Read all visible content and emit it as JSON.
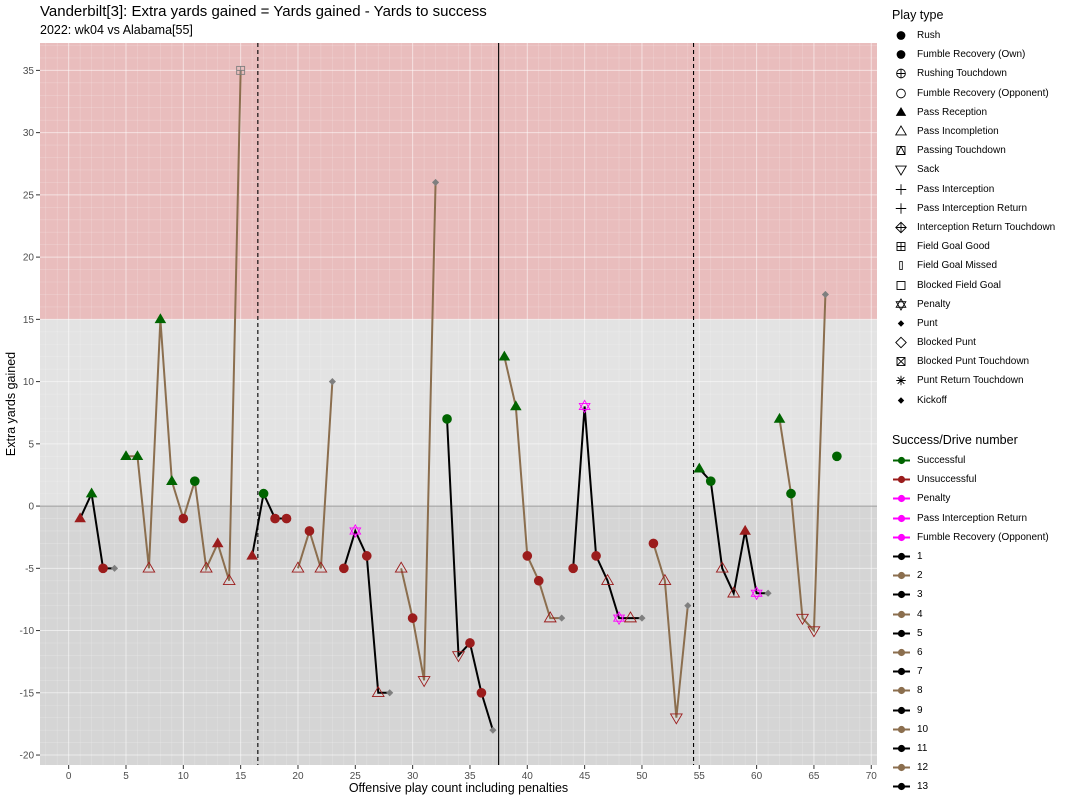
{
  "chart_data": {
    "type": "line",
    "title": "Vanderbilt[3]: Extra yards gained = Yards gained - Yards to success",
    "subtitle": "2022: wk04 vs Alabama[55]",
    "xlabel": "Offensive play count including penalties",
    "ylabel": "Extra yards gained",
    "xlim": [
      -2.5,
      70.5
    ],
    "ylim": [
      -20.8,
      37.2
    ],
    "x_ticks": [
      0,
      5,
      10,
      15,
      20,
      25,
      30,
      35,
      40,
      45,
      50,
      55,
      60,
      65,
      70
    ],
    "y_ticks": [
      -20,
      -15,
      -10,
      -5,
      0,
      5,
      10,
      15,
      20,
      25,
      30,
      35
    ],
    "grid": true,
    "shaded_region": {
      "y_from": 15,
      "y_to": 37.2,
      "color": "#e9bdbd"
    },
    "negative_region": {
      "y_from": -20.8,
      "y_to": 0,
      "color": "#d5d5d5"
    },
    "background": "#e3e3e3",
    "vlines": [
      {
        "x": 16.5,
        "style": "dashed"
      },
      {
        "x": 37.5,
        "style": "solid"
      },
      {
        "x": 54.5,
        "style": "dashed"
      }
    ],
    "colors": {
      "Successful": "#006400",
      "Unsuccessful": "#9b1c1c",
      "Penalty": "#ff00ff",
      "Drive_odd": "#000000",
      "Drive_even": "#8b6e4e",
      "end_marker": "#7f7f7f"
    },
    "drives": [
      {
        "drive": 1,
        "points": [
          {
            "x": 1,
            "y": -1,
            "type": "Pass Reception",
            "result": "Unsuccessful"
          },
          {
            "x": 2,
            "y": 1,
            "type": "Pass Reception",
            "result": "Successful"
          },
          {
            "x": 3,
            "y": -5,
            "type": "Rush",
            "result": "Unsuccessful"
          },
          {
            "x": 4,
            "y": -5,
            "type": "Punt",
            "result": "end"
          }
        ]
      },
      {
        "drive": 2,
        "points": [
          {
            "x": 5,
            "y": 4,
            "type": "Pass Reception",
            "result": "Successful"
          },
          {
            "x": 6,
            "y": 4,
            "type": "Pass Reception",
            "result": "Successful"
          },
          {
            "x": 7,
            "y": -5,
            "type": "Pass Incompletion",
            "result": "Unsuccessful"
          },
          {
            "x": 8,
            "y": 15,
            "type": "Pass Reception",
            "result": "Successful"
          },
          {
            "x": 9,
            "y": 2,
            "type": "Pass Reception",
            "result": "Successful"
          },
          {
            "x": 10,
            "y": -1,
            "type": "Rush",
            "result": "Unsuccessful"
          },
          {
            "x": 11,
            "y": 2,
            "type": "Rush",
            "result": "Successful"
          },
          {
            "x": 12,
            "y": -5,
            "type": "Pass Incompletion",
            "result": "Unsuccessful"
          },
          {
            "x": 13,
            "y": -3,
            "type": "Pass Reception",
            "result": "Unsuccessful"
          },
          {
            "x": 14,
            "y": -6,
            "type": "Pass Incompletion",
            "result": "Unsuccessful"
          },
          {
            "x": 15,
            "y": 35,
            "type": "Field Goal Good",
            "result": "end"
          }
        ]
      },
      {
        "drive": 3,
        "points": [
          {
            "x": 16,
            "y": -4,
            "type": "Pass Reception",
            "result": "Unsuccessful"
          },
          {
            "x": 17,
            "y": 1,
            "type": "Rush",
            "result": "Successful"
          },
          {
            "x": 18,
            "y": -1,
            "type": "Rush",
            "result": "Unsuccessful"
          },
          {
            "x": 19,
            "y": -1,
            "type": "Rush",
            "result": "Unsuccessful"
          }
        ]
      },
      {
        "drive": 4,
        "points": [
          {
            "x": 20,
            "y": -5,
            "type": "Pass Incompletion",
            "result": "Unsuccessful"
          },
          {
            "x": 21,
            "y": -2,
            "type": "Rush",
            "result": "Unsuccessful"
          },
          {
            "x": 22,
            "y": -5,
            "type": "Pass Incompletion",
            "result": "Unsuccessful"
          },
          {
            "x": 23,
            "y": 10,
            "type": "Punt",
            "result": "end"
          }
        ]
      },
      {
        "drive": 5,
        "points": [
          {
            "x": 24,
            "y": -5,
            "type": "Rush",
            "result": "Unsuccessful"
          },
          {
            "x": 25,
            "y": -2,
            "type": "Penalty",
            "result": "Penalty"
          },
          {
            "x": 26,
            "y": -4,
            "type": "Rush",
            "result": "Unsuccessful"
          },
          {
            "x": 27,
            "y": -15,
            "type": "Pass Incompletion",
            "result": "Unsuccessful"
          },
          {
            "x": 28,
            "y": -15,
            "type": "Punt",
            "result": "end"
          }
        ]
      },
      {
        "drive": 6,
        "points": [
          {
            "x": 29,
            "y": -5,
            "type": "Pass Incompletion",
            "result": "Unsuccessful"
          },
          {
            "x": 30,
            "y": -9,
            "type": "Rush",
            "result": "Unsuccessful"
          },
          {
            "x": 31,
            "y": -14,
            "type": "Sack",
            "result": "Unsuccessful"
          },
          {
            "x": 32,
            "y": 26,
            "type": "Punt",
            "result": "end"
          }
        ]
      },
      {
        "drive": 7,
        "points": [
          {
            "x": 33,
            "y": 7,
            "type": "Rush",
            "result": "Successful"
          },
          {
            "x": 34,
            "y": -12,
            "type": "Sack",
            "result": "Unsuccessful"
          },
          {
            "x": 35,
            "y": -11,
            "type": "Rush",
            "result": "Unsuccessful"
          },
          {
            "x": 36,
            "y": -15,
            "type": "Rush",
            "result": "Unsuccessful"
          },
          {
            "x": 37,
            "y": -18,
            "type": "Punt",
            "result": "end"
          }
        ]
      },
      {
        "drive": 8,
        "points": [
          {
            "x": 38,
            "y": 12,
            "type": "Pass Reception",
            "result": "Successful"
          },
          {
            "x": 39,
            "y": 8,
            "type": "Pass Reception",
            "result": "Successful"
          },
          {
            "x": 40,
            "y": -4,
            "type": "Rush",
            "result": "Unsuccessful"
          },
          {
            "x": 41,
            "y": -6,
            "type": "Rush",
            "result": "Unsuccessful"
          },
          {
            "x": 42,
            "y": -9,
            "type": "Pass Incompletion",
            "result": "Unsuccessful"
          },
          {
            "x": 43,
            "y": -9,
            "type": "Punt",
            "result": "end"
          }
        ]
      },
      {
        "drive": 9,
        "points": [
          {
            "x": 44,
            "y": -5,
            "type": "Rush",
            "result": "Unsuccessful"
          },
          {
            "x": 45,
            "y": 8,
            "type": "Penalty",
            "result": "Penalty"
          },
          {
            "x": 46,
            "y": -4,
            "type": "Rush",
            "result": "Unsuccessful"
          },
          {
            "x": 47,
            "y": -6,
            "type": "Pass Incompletion",
            "result": "Unsuccessful"
          },
          {
            "x": 48,
            "y": -9,
            "type": "Penalty",
            "result": "Penalty"
          },
          {
            "x": 49,
            "y": -9,
            "type": "Pass Incompletion",
            "result": "Unsuccessful"
          },
          {
            "x": 50,
            "y": -9,
            "type": "Punt",
            "result": "end"
          }
        ]
      },
      {
        "drive": 10,
        "points": [
          {
            "x": 51,
            "y": -3,
            "type": "Rush",
            "result": "Unsuccessful"
          },
          {
            "x": 52,
            "y": -6,
            "type": "Pass Incompletion",
            "result": "Unsuccessful"
          },
          {
            "x": 53,
            "y": -17,
            "type": "Sack",
            "result": "Unsuccessful"
          },
          {
            "x": 54,
            "y": -8,
            "type": "Punt",
            "result": "end"
          }
        ]
      },
      {
        "drive": 11,
        "points": [
          {
            "x": 55,
            "y": 3,
            "type": "Pass Reception",
            "result": "Successful"
          },
          {
            "x": 56,
            "y": 2,
            "type": "Rush",
            "result": "Successful"
          },
          {
            "x": 57,
            "y": -5,
            "type": "Pass Incompletion",
            "result": "Unsuccessful"
          },
          {
            "x": 58,
            "y": -7,
            "type": "Pass Incompletion",
            "result": "Unsuccessful"
          },
          {
            "x": 59,
            "y": -2,
            "type": "Pass Reception",
            "result": "Unsuccessful"
          },
          {
            "x": 60,
            "y": -7,
            "type": "Penalty",
            "result": "Penalty"
          },
          {
            "x": 61,
            "y": -7,
            "type": "Punt",
            "result": "end"
          }
        ]
      },
      {
        "drive": 12,
        "points": [
          {
            "x": 62,
            "y": 7,
            "type": "Pass Reception",
            "result": "Successful"
          },
          {
            "x": 63,
            "y": 1,
            "type": "Rush",
            "result": "Successful"
          },
          {
            "x": 64,
            "y": -9,
            "type": "Sack",
            "result": "Unsuccessful"
          },
          {
            "x": 65,
            "y": -10,
            "type": "Sack",
            "result": "Unsuccessful"
          },
          {
            "x": 66,
            "y": 17,
            "type": "Punt",
            "result": "end"
          }
        ]
      },
      {
        "drive": 13,
        "points": [
          {
            "x": 67,
            "y": 4,
            "type": "Rush",
            "result": "Successful"
          }
        ]
      }
    ]
  },
  "legend_play_type": {
    "title": "Play type",
    "items": [
      {
        "label": "Rush",
        "icon": "circle-filled"
      },
      {
        "label": "Fumble Recovery (Own)",
        "icon": "circle-filled"
      },
      {
        "label": "Rushing Touchdown",
        "icon": "circle-plus"
      },
      {
        "label": "Fumble Recovery (Opponent)",
        "icon": "circle-open"
      },
      {
        "label": "Pass Reception",
        "icon": "triangle-filled"
      },
      {
        "label": "Pass Incompletion",
        "icon": "triangle-open"
      },
      {
        "label": "Passing Touchdown",
        "icon": "square-triangle"
      },
      {
        "label": "Sack",
        "icon": "triangle-down-open"
      },
      {
        "label": "Pass Interception",
        "icon": "plus"
      },
      {
        "label": "Pass Interception Return",
        "icon": "plus"
      },
      {
        "label": "Interception Return Touchdown",
        "icon": "diamond-plus"
      },
      {
        "label": "Field Goal Good",
        "icon": "square-plus"
      },
      {
        "label": "Field Goal Missed",
        "icon": "thin-bar"
      },
      {
        "label": "Blocked Field Goal",
        "icon": "square-open"
      },
      {
        "label": "Penalty",
        "icon": "star-of-david"
      },
      {
        "label": "Punt",
        "icon": "diamond-filled-small"
      },
      {
        "label": "Blocked Punt",
        "icon": "diamond-open"
      },
      {
        "label": "Blocked Punt Touchdown",
        "icon": "square-x"
      },
      {
        "label": "Punt Return Touchdown",
        "icon": "asterisk"
      },
      {
        "label": "Kickoff",
        "icon": "diamond-filled-small"
      }
    ]
  },
  "legend_success": {
    "title": "Success/Drive number",
    "items": [
      {
        "label": "Successful",
        "color": "#006400",
        "icon": "line-dot"
      },
      {
        "label": "Unsuccessful",
        "color": "#9b1c1c",
        "icon": "line-dot"
      },
      {
        "label": "Penalty",
        "color": "#ff00ff",
        "icon": "line-dot"
      },
      {
        "label": "Pass Interception Return",
        "color": "#ff00ff",
        "icon": "line-dot"
      },
      {
        "label": "Fumble Recovery (Opponent)",
        "color": "#ff00ff",
        "icon": "line-dot"
      },
      {
        "label": "1",
        "color": "#000000",
        "icon": "line-dot"
      },
      {
        "label": "2",
        "color": "#8b6e4e",
        "icon": "line-dot"
      },
      {
        "label": "3",
        "color": "#000000",
        "icon": "line-dot"
      },
      {
        "label": "4",
        "color": "#8b6e4e",
        "icon": "line-dot"
      },
      {
        "label": "5",
        "color": "#000000",
        "icon": "line-dot"
      },
      {
        "label": "6",
        "color": "#8b6e4e",
        "icon": "line-dot"
      },
      {
        "label": "7",
        "color": "#000000",
        "icon": "line-dot"
      },
      {
        "label": "8",
        "color": "#8b6e4e",
        "icon": "line-dot"
      },
      {
        "label": "9",
        "color": "#000000",
        "icon": "line-dot"
      },
      {
        "label": "10",
        "color": "#8b6e4e",
        "icon": "line-dot"
      },
      {
        "label": "11",
        "color": "#000000",
        "icon": "line-dot"
      },
      {
        "label": "12",
        "color": "#8b6e4e",
        "icon": "line-dot"
      },
      {
        "label": "13",
        "color": "#000000",
        "icon": "line-dot"
      }
    ]
  }
}
